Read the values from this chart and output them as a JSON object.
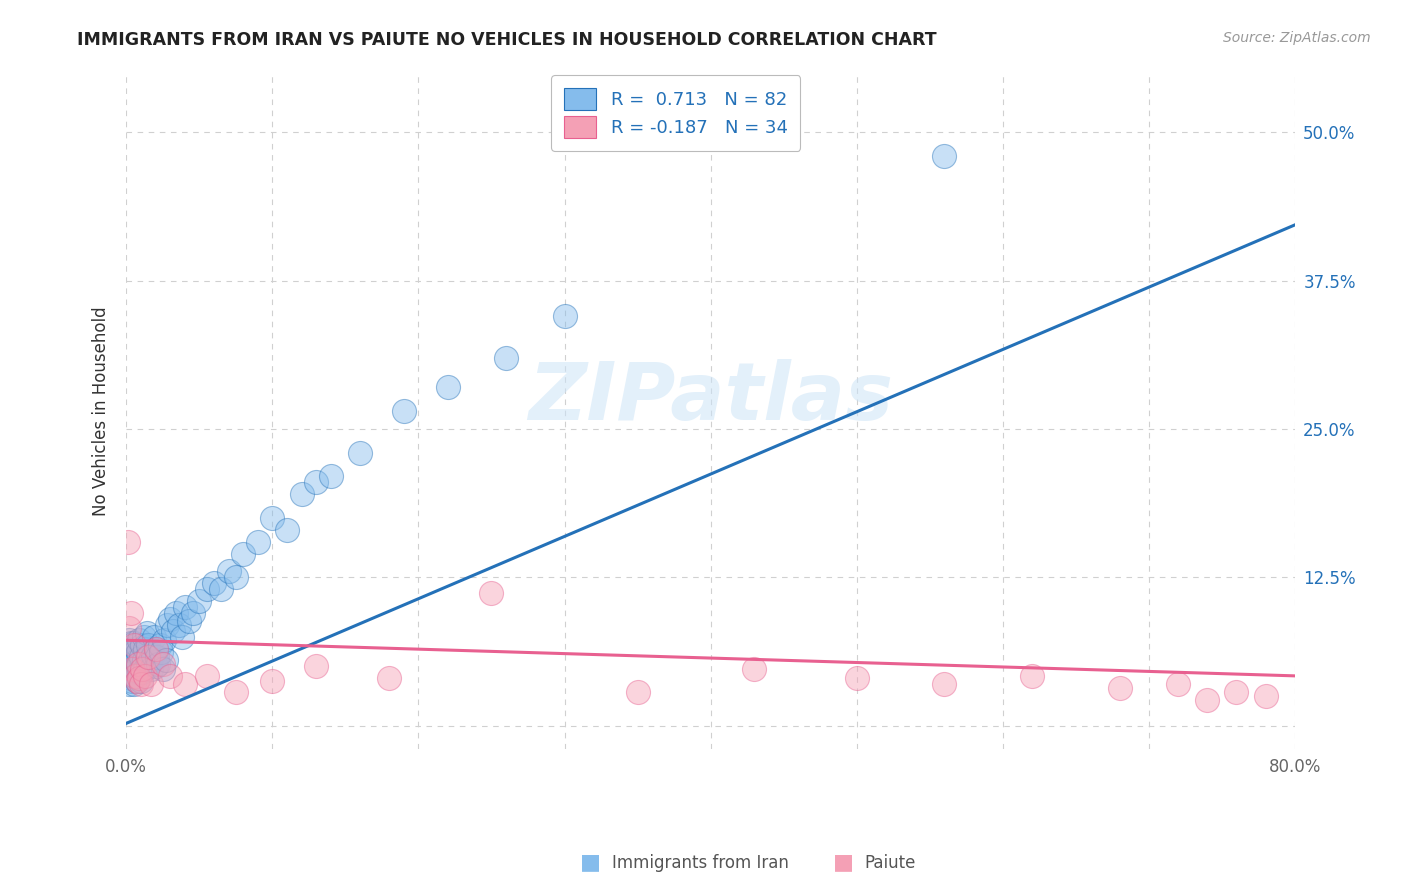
{
  "title": "IMMIGRANTS FROM IRAN VS PAIUTE NO VEHICLES IN HOUSEHOLD CORRELATION CHART",
  "source": "Source: ZipAtlas.com",
  "ylabel": "No Vehicles in Household",
  "xlim": [
    0.0,
    0.8
  ],
  "ylim": [
    -0.02,
    0.55
  ],
  "xticks": [
    0.0,
    0.1,
    0.2,
    0.3,
    0.4,
    0.5,
    0.6,
    0.7,
    0.8
  ],
  "xticklabels": [
    "0.0%",
    "",
    "",
    "",
    "",
    "",
    "",
    "",
    "80.0%"
  ],
  "yticks": [
    0.0,
    0.125,
    0.25,
    0.375,
    0.5
  ],
  "yticklabels_right": [
    "",
    "12.5%",
    "25.0%",
    "37.5%",
    "50.0%"
  ],
  "blue_color": "#85bcec",
  "pink_color": "#f4a0b5",
  "blue_line_color": "#2471b8",
  "pink_line_color": "#e86090",
  "legend_line1": "R =  0.713   N = 82",
  "legend_line2": "R = -0.187   N = 34",
  "watermark": "ZIPatlas",
  "background_color": "#ffffff",
  "grid_color": "#d0d0d0",
  "blue_line_x": [
    0.0,
    0.8
  ],
  "blue_line_y": [
    0.002,
    0.422
  ],
  "pink_line_x": [
    0.0,
    0.8
  ],
  "pink_line_y": [
    0.072,
    0.042
  ],
  "blue_scatter_x": [
    0.001,
    0.001,
    0.002,
    0.002,
    0.002,
    0.002,
    0.002,
    0.003,
    0.003,
    0.003,
    0.003,
    0.004,
    0.004,
    0.004,
    0.004,
    0.005,
    0.005,
    0.005,
    0.005,
    0.006,
    0.006,
    0.006,
    0.007,
    0.007,
    0.007,
    0.008,
    0.008,
    0.009,
    0.009,
    0.01,
    0.01,
    0.011,
    0.011,
    0.012,
    0.012,
    0.013,
    0.013,
    0.014,
    0.014,
    0.015,
    0.015,
    0.016,
    0.017,
    0.018,
    0.019,
    0.02,
    0.02,
    0.021,
    0.022,
    0.023,
    0.024,
    0.025,
    0.026,
    0.027,
    0.028,
    0.03,
    0.032,
    0.034,
    0.036,
    0.038,
    0.04,
    0.043,
    0.046,
    0.05,
    0.055,
    0.06,
    0.065,
    0.07,
    0.075,
    0.08,
    0.09,
    0.1,
    0.11,
    0.12,
    0.13,
    0.14,
    0.16,
    0.19,
    0.22,
    0.26,
    0.3,
    0.56
  ],
  "blue_scatter_y": [
    0.055,
    0.065,
    0.045,
    0.058,
    0.072,
    0.035,
    0.06,
    0.048,
    0.062,
    0.04,
    0.07,
    0.05,
    0.038,
    0.065,
    0.055,
    0.042,
    0.058,
    0.07,
    0.035,
    0.048,
    0.062,
    0.042,
    0.055,
    0.068,
    0.038,
    0.05,
    0.062,
    0.045,
    0.072,
    0.038,
    0.058,
    0.068,
    0.045,
    0.055,
    0.075,
    0.048,
    0.065,
    0.058,
    0.078,
    0.052,
    0.068,
    0.055,
    0.048,
    0.06,
    0.075,
    0.05,
    0.065,
    0.058,
    0.052,
    0.068,
    0.062,
    0.048,
    0.072,
    0.055,
    0.085,
    0.09,
    0.08,
    0.095,
    0.085,
    0.075,
    0.1,
    0.088,
    0.095,
    0.105,
    0.115,
    0.12,
    0.115,
    0.13,
    0.125,
    0.145,
    0.155,
    0.175,
    0.165,
    0.195,
    0.205,
    0.21,
    0.23,
    0.265,
    0.285,
    0.31,
    0.345,
    0.48
  ],
  "pink_scatter_x": [
    0.001,
    0.002,
    0.003,
    0.004,
    0.005,
    0.006,
    0.007,
    0.008,
    0.009,
    0.01,
    0.011,
    0.013,
    0.015,
    0.017,
    0.02,
    0.025,
    0.03,
    0.04,
    0.055,
    0.075,
    0.1,
    0.13,
    0.18,
    0.25,
    0.35,
    0.43,
    0.5,
    0.56,
    0.62,
    0.68,
    0.72,
    0.74,
    0.76,
    0.78
  ],
  "pink_scatter_y": [
    0.155,
    0.082,
    0.095,
    0.048,
    0.068,
    0.042,
    0.038,
    0.052,
    0.04,
    0.035,
    0.048,
    0.042,
    0.058,
    0.035,
    0.065,
    0.052,
    0.042,
    0.035,
    0.042,
    0.028,
    0.038,
    0.05,
    0.04,
    0.112,
    0.028,
    0.048,
    0.04,
    0.035,
    0.042,
    0.032,
    0.035,
    0.022,
    0.028,
    0.025
  ]
}
